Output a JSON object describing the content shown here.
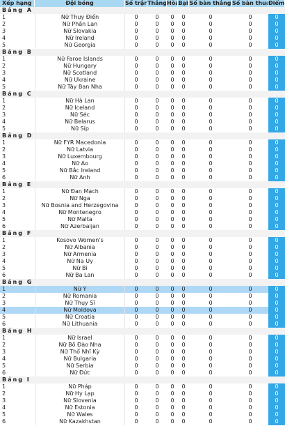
{
  "header": {
    "rank": "Xếp hạng",
    "team": "Đội bóng",
    "played": "Số trận",
    "won": "Thắng",
    "drawn": "Hòa",
    "lost": "Bại",
    "goals_for": "Số bàn thắng",
    "goals_against": "Số bàn thua",
    "points": "Điểm"
  },
  "groups": [
    {
      "label": "Bảng A",
      "teams": [
        {
          "rank": "1",
          "team": "Nữ Thụy Điển",
          "p": "0",
          "w": "0",
          "d": "0",
          "l": "0",
          "gf": "0",
          "ga": "0",
          "pts": "0"
        },
        {
          "rank": "2",
          "team": "Nữ Phần Lan",
          "p": "0",
          "w": "0",
          "d": "0",
          "l": "0",
          "gf": "0",
          "ga": "0",
          "pts": "0"
        },
        {
          "rank": "3",
          "team": "Nữ Slovakia",
          "p": "0",
          "w": "0",
          "d": "0",
          "l": "0",
          "gf": "0",
          "ga": "0",
          "pts": "0"
        },
        {
          "rank": "4",
          "team": "Nữ Ireland",
          "p": "0",
          "w": "0",
          "d": "0",
          "l": "0",
          "gf": "0",
          "ga": "0",
          "pts": "0"
        },
        {
          "rank": "5",
          "team": "Nữ Georgia",
          "p": "0",
          "w": "0",
          "d": "0",
          "l": "0",
          "gf": "0",
          "ga": "0",
          "pts": "0"
        }
      ]
    },
    {
      "label": "Bảng B",
      "teams": [
        {
          "rank": "1",
          "team": "Nữ Faroe Islands",
          "p": "0",
          "w": "0",
          "d": "0",
          "l": "0",
          "gf": "0",
          "ga": "0",
          "pts": "0"
        },
        {
          "rank": "2",
          "team": "Nữ Hungary",
          "p": "0",
          "w": "0",
          "d": "0",
          "l": "0",
          "gf": "0",
          "ga": "0",
          "pts": "0"
        },
        {
          "rank": "3",
          "team": "Nữ Scotland",
          "p": "0",
          "w": "0",
          "d": "0",
          "l": "0",
          "gf": "0",
          "ga": "0",
          "pts": "0"
        },
        {
          "rank": "4",
          "team": "Nữ Ukraine",
          "p": "0",
          "w": "0",
          "d": "0",
          "l": "0",
          "gf": "0",
          "ga": "0",
          "pts": "0"
        },
        {
          "rank": "5",
          "team": "Nữ Tây Ban Nha",
          "p": "0",
          "w": "0",
          "d": "0",
          "l": "0",
          "gf": "0",
          "ga": "0",
          "pts": "0"
        }
      ]
    },
    {
      "label": "Bảng C",
      "teams": [
        {
          "rank": "1",
          "team": "Nữ Hà Lan",
          "p": "0",
          "w": "0",
          "d": "0",
          "l": "0",
          "gf": "0",
          "ga": "0",
          "pts": "0"
        },
        {
          "rank": "2",
          "team": "Nữ Iceland",
          "p": "0",
          "w": "0",
          "d": "0",
          "l": "0",
          "gf": "0",
          "ga": "0",
          "pts": "0"
        },
        {
          "rank": "3",
          "team": "Nữ Séc",
          "p": "0",
          "w": "0",
          "d": "0",
          "l": "0",
          "gf": "0",
          "ga": "0",
          "pts": "0"
        },
        {
          "rank": "4",
          "team": "Nữ Belarus",
          "p": "0",
          "w": "0",
          "d": "0",
          "l": "0",
          "gf": "0",
          "ga": "0",
          "pts": "0"
        },
        {
          "rank": "5",
          "team": "Nữ Síp",
          "p": "0",
          "w": "0",
          "d": "0",
          "l": "0",
          "gf": "0",
          "ga": "0",
          "pts": "0"
        }
      ]
    },
    {
      "label": "Bảng D",
      "teams": [
        {
          "rank": "1",
          "team": "Nữ FYR Macedonia",
          "p": "0",
          "w": "0",
          "d": "0",
          "l": "0",
          "gf": "0",
          "ga": "0",
          "pts": "0"
        },
        {
          "rank": "2",
          "team": "Nữ Latvia",
          "p": "0",
          "w": "0",
          "d": "0",
          "l": "0",
          "gf": "0",
          "ga": "0",
          "pts": "0"
        },
        {
          "rank": "3",
          "team": "Nữ Luxembourg",
          "p": "0",
          "w": "0",
          "d": "0",
          "l": "0",
          "gf": "0",
          "ga": "0",
          "pts": "0"
        },
        {
          "rank": "4",
          "team": "Nữ Áo",
          "p": "0",
          "w": "0",
          "d": "0",
          "l": "0",
          "gf": "0",
          "ga": "0",
          "pts": "0"
        },
        {
          "rank": "5",
          "team": "Nữ Bắc Ireland",
          "p": "0",
          "w": "0",
          "d": "0",
          "l": "0",
          "gf": "0",
          "ga": "0",
          "pts": "0"
        },
        {
          "rank": "6",
          "team": "Nữ Anh",
          "p": "0",
          "w": "0",
          "d": "0",
          "l": "0",
          "gf": "0",
          "ga": "0",
          "pts": "0"
        }
      ]
    },
    {
      "label": "Bảng E",
      "teams": [
        {
          "rank": "1",
          "team": "Nữ Đan Mạch",
          "p": "0",
          "w": "0",
          "d": "0",
          "l": "0",
          "gf": "0",
          "ga": "0",
          "pts": "0"
        },
        {
          "rank": "2",
          "team": "Nữ Nga",
          "p": "0",
          "w": "0",
          "d": "0",
          "l": "0",
          "gf": "0",
          "ga": "0",
          "pts": "0"
        },
        {
          "rank": "3",
          "team": "Nữ Bosnia and Herzegovina",
          "p": "0",
          "w": "0",
          "d": "0",
          "l": "0",
          "gf": "0",
          "ga": "0",
          "pts": "0"
        },
        {
          "rank": "4",
          "team": "Nữ Montenegro",
          "p": "0",
          "w": "0",
          "d": "0",
          "l": "0",
          "gf": "0",
          "ga": "0",
          "pts": "0"
        },
        {
          "rank": "5",
          "team": "Nữ Malta",
          "p": "0",
          "w": "0",
          "d": "0",
          "l": "0",
          "gf": "0",
          "ga": "0",
          "pts": "0"
        },
        {
          "rank": "6",
          "team": "Nữ Azerbaijan",
          "p": "0",
          "w": "0",
          "d": "0",
          "l": "0",
          "gf": "0",
          "ga": "0",
          "pts": "0"
        }
      ]
    },
    {
      "label": "Bảng F",
      "teams": [
        {
          "rank": "1",
          "team": "Kosovo Women's",
          "p": "0",
          "w": "0",
          "d": "0",
          "l": "0",
          "gf": "0",
          "ga": "0",
          "pts": "0"
        },
        {
          "rank": "2",
          "team": "Nữ Albania",
          "p": "0",
          "w": "0",
          "d": "0",
          "l": "0",
          "gf": "0",
          "ga": "0",
          "pts": "0"
        },
        {
          "rank": "3",
          "team": "Nữ Armenia",
          "p": "0",
          "w": "0",
          "d": "0",
          "l": "0",
          "gf": "0",
          "ga": "0",
          "pts": "0"
        },
        {
          "rank": "4",
          "team": "Nữ Na Uy",
          "p": "0",
          "w": "0",
          "d": "0",
          "l": "0",
          "gf": "0",
          "ga": "0",
          "pts": "0"
        },
        {
          "rank": "5",
          "team": "Nữ Bỉ",
          "p": "0",
          "w": "0",
          "d": "0",
          "l": "0",
          "gf": "0",
          "ga": "0",
          "pts": "0"
        },
        {
          "rank": "6",
          "team": "Nữ Ba Lan",
          "p": "0",
          "w": "0",
          "d": "0",
          "l": "0",
          "gf": "0",
          "ga": "0",
          "pts": "0"
        }
      ]
    },
    {
      "label": "Bảng G",
      "teams": [
        {
          "rank": "1",
          "team": "Nữ Ý",
          "p": "0",
          "w": "0",
          "d": "0",
          "l": "0",
          "gf": "0",
          "ga": "0",
          "pts": "0",
          "hl": true
        },
        {
          "rank": "2",
          "team": "Nữ Romania",
          "p": "0",
          "w": "0",
          "d": "0",
          "l": "0",
          "gf": "0",
          "ga": "0",
          "pts": "0"
        },
        {
          "rank": "3",
          "team": "Nữ Thụy Sĩ",
          "p": "0",
          "w": "0",
          "d": "0",
          "l": "0",
          "gf": "0",
          "ga": "0",
          "pts": "0"
        },
        {
          "rank": "4",
          "team": "Nữ Moldova",
          "p": "0",
          "w": "0",
          "d": "0",
          "l": "0",
          "gf": "0",
          "ga": "0",
          "pts": "0",
          "hl": true
        },
        {
          "rank": "5",
          "team": "Nữ Croatia",
          "p": "0",
          "w": "0",
          "d": "0",
          "l": "0",
          "gf": "0",
          "ga": "0",
          "pts": "0"
        },
        {
          "rank": "6",
          "team": "Nữ Lithuania",
          "p": "0",
          "w": "0",
          "d": "0",
          "l": "0",
          "gf": "0",
          "ga": "0",
          "pts": "0"
        }
      ]
    },
    {
      "label": "Bảng H",
      "teams": [
        {
          "rank": "1",
          "team": "Nữ Israel",
          "p": "0",
          "w": "0",
          "d": "0",
          "l": "0",
          "gf": "0",
          "ga": "0",
          "pts": "0"
        },
        {
          "rank": "2",
          "team": "Nữ Bồ Đào Nha",
          "p": "0",
          "w": "0",
          "d": "0",
          "l": "0",
          "gf": "0",
          "ga": "0",
          "pts": "0"
        },
        {
          "rank": "3",
          "team": "Nữ Thổ Nhĩ Kỳ",
          "p": "0",
          "w": "0",
          "d": "0",
          "l": "0",
          "gf": "0",
          "ga": "0",
          "pts": "0"
        },
        {
          "rank": "4",
          "team": "Nữ Bulgaria",
          "p": "0",
          "w": "0",
          "d": "0",
          "l": "0",
          "gf": "0",
          "ga": "0",
          "pts": "0"
        },
        {
          "rank": "5",
          "team": "Nữ Serbia",
          "p": "0",
          "w": "0",
          "d": "0",
          "l": "0",
          "gf": "0",
          "ga": "0",
          "pts": "0"
        },
        {
          "rank": "6",
          "team": "Nữ Đức",
          "p": "0",
          "w": "0",
          "d": "0",
          "l": "0",
          "gf": "0",
          "ga": "0",
          "pts": "0"
        }
      ]
    },
    {
      "label": "Bảng I",
      "teams": [
        {
          "rank": "1",
          "team": "Nữ Pháp",
          "p": "0",
          "w": "0",
          "d": "0",
          "l": "0",
          "gf": "0",
          "ga": "0",
          "pts": "0"
        },
        {
          "rank": "2",
          "team": "Nữ Hy Lạp",
          "p": "0",
          "w": "0",
          "d": "0",
          "l": "0",
          "gf": "0",
          "ga": "0",
          "pts": "0"
        },
        {
          "rank": "3",
          "team": "Nữ Slovenia",
          "p": "0",
          "w": "0",
          "d": "0",
          "l": "0",
          "gf": "0",
          "ga": "0",
          "pts": "0"
        },
        {
          "rank": "4",
          "team": "Nữ Estonia",
          "p": "0",
          "w": "0",
          "d": "0",
          "l": "0",
          "gf": "0",
          "ga": "0",
          "pts": "0"
        },
        {
          "rank": "5",
          "team": "Nữ Wales",
          "p": "0",
          "w": "0",
          "d": "0",
          "l": "0",
          "gf": "0",
          "ga": "0",
          "pts": "0"
        },
        {
          "rank": "6",
          "team": "Nữ Kazakhstan",
          "p": "0",
          "w": "0",
          "d": "0",
          "l": "0",
          "gf": "0",
          "ga": "0",
          "pts": "0"
        }
      ]
    }
  ],
  "colors": {
    "header_bg": "#a9d8f2",
    "group_bg": "#f2f2f2",
    "points_bg": "#33a8e6",
    "highlight_bg": "#aed8f6"
  }
}
